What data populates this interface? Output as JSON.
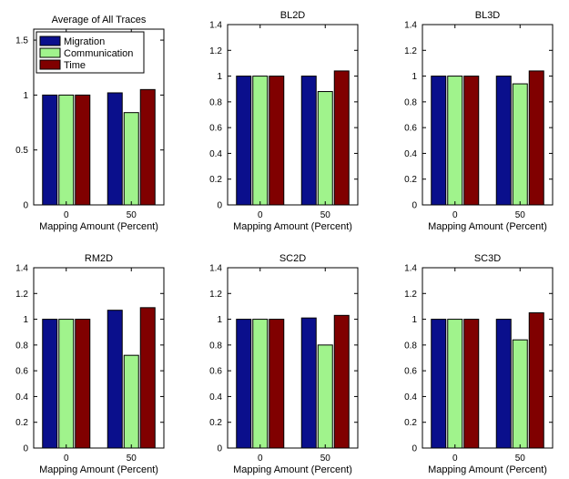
{
  "series_colors": {
    "Migration": "#0a0f8c",
    "Communication": "#a0f38c",
    "Time": "#800000"
  },
  "chart_data": [
    {
      "type": "bar",
      "title": "Average of All Traces",
      "xlabel": "Mapping Amount (Percent)",
      "ylabel": "",
      "categories": [
        "0",
        "50"
      ],
      "series": [
        {
          "name": "Migration",
          "values": [
            1.0,
            1.02
          ]
        },
        {
          "name": "Communication",
          "values": [
            1.0,
            0.84
          ]
        },
        {
          "name": "Time",
          "values": [
            1.0,
            1.05
          ]
        }
      ],
      "ylim": [
        0,
        1.6
      ],
      "yticks": [
        "0",
        "0.5",
        "1",
        "1.5"
      ],
      "ytick_values": [
        0,
        0.5,
        1,
        1.5
      ],
      "legend": "top-left",
      "legend_entries": [
        "Migration",
        "Communication",
        "Time"
      ]
    },
    {
      "type": "bar",
      "title": "BL2D",
      "xlabel": "Mapping Amount (Percent)",
      "ylabel": "",
      "categories": [
        "0",
        "50"
      ],
      "series": [
        {
          "name": "Migration",
          "values": [
            1.0,
            1.0
          ]
        },
        {
          "name": "Communication",
          "values": [
            1.0,
            0.88
          ]
        },
        {
          "name": "Time",
          "values": [
            1.0,
            1.04
          ]
        }
      ],
      "ylim": [
        0,
        1.4
      ],
      "yticks": [
        "0",
        "0.2",
        "0.4",
        "0.6",
        "0.8",
        "1",
        "1.2",
        "1.4"
      ],
      "ytick_values": [
        0,
        0.2,
        0.4,
        0.6,
        0.8,
        1.0,
        1.2,
        1.4
      ]
    },
    {
      "type": "bar",
      "title": "BL3D",
      "xlabel": "Mapping Amount (Percent)",
      "ylabel": "",
      "categories": [
        "0",
        "50"
      ],
      "series": [
        {
          "name": "Migration",
          "values": [
            1.0,
            1.0
          ]
        },
        {
          "name": "Communication",
          "values": [
            1.0,
            0.94
          ]
        },
        {
          "name": "Time",
          "values": [
            1.0,
            1.04
          ]
        }
      ],
      "ylim": [
        0,
        1.4
      ],
      "yticks": [
        "0",
        "0.2",
        "0.4",
        "0.6",
        "0.8",
        "1",
        "1.2",
        "1.4"
      ],
      "ytick_values": [
        0,
        0.2,
        0.4,
        0.6,
        0.8,
        1.0,
        1.2,
        1.4
      ]
    },
    {
      "type": "bar",
      "title": "RM2D",
      "xlabel": "Mapping Amount (Percent)",
      "ylabel": "",
      "categories": [
        "0",
        "50"
      ],
      "series": [
        {
          "name": "Migration",
          "values": [
            1.0,
            1.07
          ]
        },
        {
          "name": "Communication",
          "values": [
            1.0,
            0.72
          ]
        },
        {
          "name": "Time",
          "values": [
            1.0,
            1.09
          ]
        }
      ],
      "ylim": [
        0,
        1.4
      ],
      "yticks": [
        "0",
        "0.2",
        "0.4",
        "0.6",
        "0.8",
        "1",
        "1.2",
        "1.4"
      ],
      "ytick_values": [
        0,
        0.2,
        0.4,
        0.6,
        0.8,
        1.0,
        1.2,
        1.4
      ]
    },
    {
      "type": "bar",
      "title": "SC2D",
      "xlabel": "Mapping Amount (Percent)",
      "ylabel": "",
      "categories": [
        "0",
        "50"
      ],
      "series": [
        {
          "name": "Migration",
          "values": [
            1.0,
            1.01
          ]
        },
        {
          "name": "Communication",
          "values": [
            1.0,
            0.8
          ]
        },
        {
          "name": "Time",
          "values": [
            1.0,
            1.03
          ]
        }
      ],
      "ylim": [
        0,
        1.4
      ],
      "yticks": [
        "0",
        "0.2",
        "0.4",
        "0.6",
        "0.8",
        "1",
        "1.2",
        "1.4"
      ],
      "ytick_values": [
        0,
        0.2,
        0.4,
        0.6,
        0.8,
        1.0,
        1.2,
        1.4
      ]
    },
    {
      "type": "bar",
      "title": "SC3D",
      "xlabel": "Mapping Amount (Percent)",
      "ylabel": "",
      "categories": [
        "0",
        "50"
      ],
      "series": [
        {
          "name": "Migration",
          "values": [
            1.0,
            1.0
          ]
        },
        {
          "name": "Communication",
          "values": [
            1.0,
            0.84
          ]
        },
        {
          "name": "Time",
          "values": [
            1.0,
            1.05
          ]
        }
      ],
      "ylim": [
        0,
        1.4
      ],
      "yticks": [
        "0",
        "0.2",
        "0.4",
        "0.6",
        "0.8",
        "1",
        "1.2",
        "1.4"
      ],
      "ytick_values": [
        0,
        0.2,
        0.4,
        0.6,
        0.8,
        1.0,
        1.2,
        1.4
      ]
    }
  ]
}
